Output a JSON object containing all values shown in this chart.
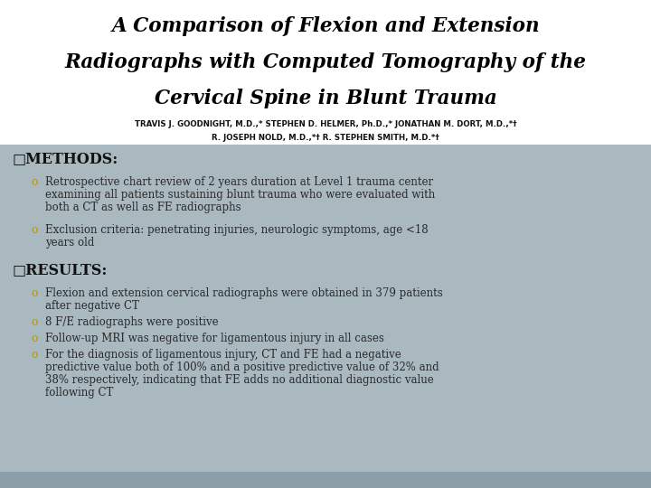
{
  "title_line1": "A Comparison of Flexion and Extension",
  "title_line2": "Radiographs with Computed Tomography of the",
  "title_line3": "Cervical Spine in Blunt Trauma",
  "authors_line1": "TRAVIS J. GOODNIGHT, M.D.,* STEPHEN D. HELMER, Ph.D.,* JONATHAN M. DORT, M.D.,*†",
  "authors_line2": "R. JOSEPH NOLD, M.D.,*† R. STEPHEN SMITH, M.D.*†",
  "methods_header": "□METHODS:",
  "methods_bullets": [
    "Retrospective chart review of 2 years duration at Level 1 trauma center\nexamining all patients sustaining blunt trauma who were evaluated with\nboth a CT as well as FE radiographs",
    "Exclusion criteria: penetrating injuries, neurologic symptoms, age <18\nyears old"
  ],
  "results_header": "□RESULTS:",
  "results_bullets": [
    "Flexion and extension cervical radiographs were obtained in 379 patients\nafter negative CT",
    "8 F/E radiographs were positive",
    "Follow-up MRI was negative for ligamentous injury in all cases",
    "For the diagnosis of ligamentous injury, CT and FE had a negative\npredictive value both of 100% and a positive predictive value of 32% and\n38% respectively, indicating that FE adds no additional diagnostic value\nfollowing CT"
  ],
  "bg_color": "#ffffff",
  "content_bg_color": "#aab8c0",
  "bottom_bar_color": "#8a9fa8",
  "title_color": "#000000",
  "authors_color": "#111111",
  "header_color": "#111111",
  "bullet_text_color": "#2a2a2a",
  "bullet_marker_color": "#b8960a",
  "header_square_color": "#b8960a",
  "title_fontsize": 15.5,
  "authors_fontsize": 6.2,
  "header_fontsize": 11.5,
  "bullet_fontsize": 8.5
}
